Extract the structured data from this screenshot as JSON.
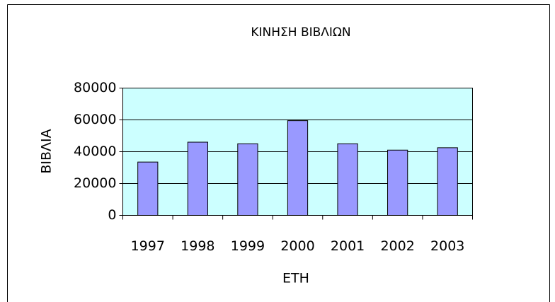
{
  "chart_data": {
    "type": "bar",
    "title": "ΚΙΝΗΣΗ ΒΙΒΛΙΩΝ",
    "x_label": "ΕΤΗ",
    "y_label": "ΒΙΒΛΙΑ",
    "categories": [
      "1997",
      "1998",
      "1999",
      "2000",
      "2001",
      "2002",
      "2003"
    ],
    "values": [
      33500,
      46000,
      45000,
      59500,
      45000,
      41000,
      42500
    ],
    "color": "#9999ff",
    "plot_background": "#ccffff",
    "ylim": [
      0,
      80000
    ],
    "yticks": [
      0,
      20000,
      40000,
      60000,
      80000
    ],
    "grid": true
  }
}
